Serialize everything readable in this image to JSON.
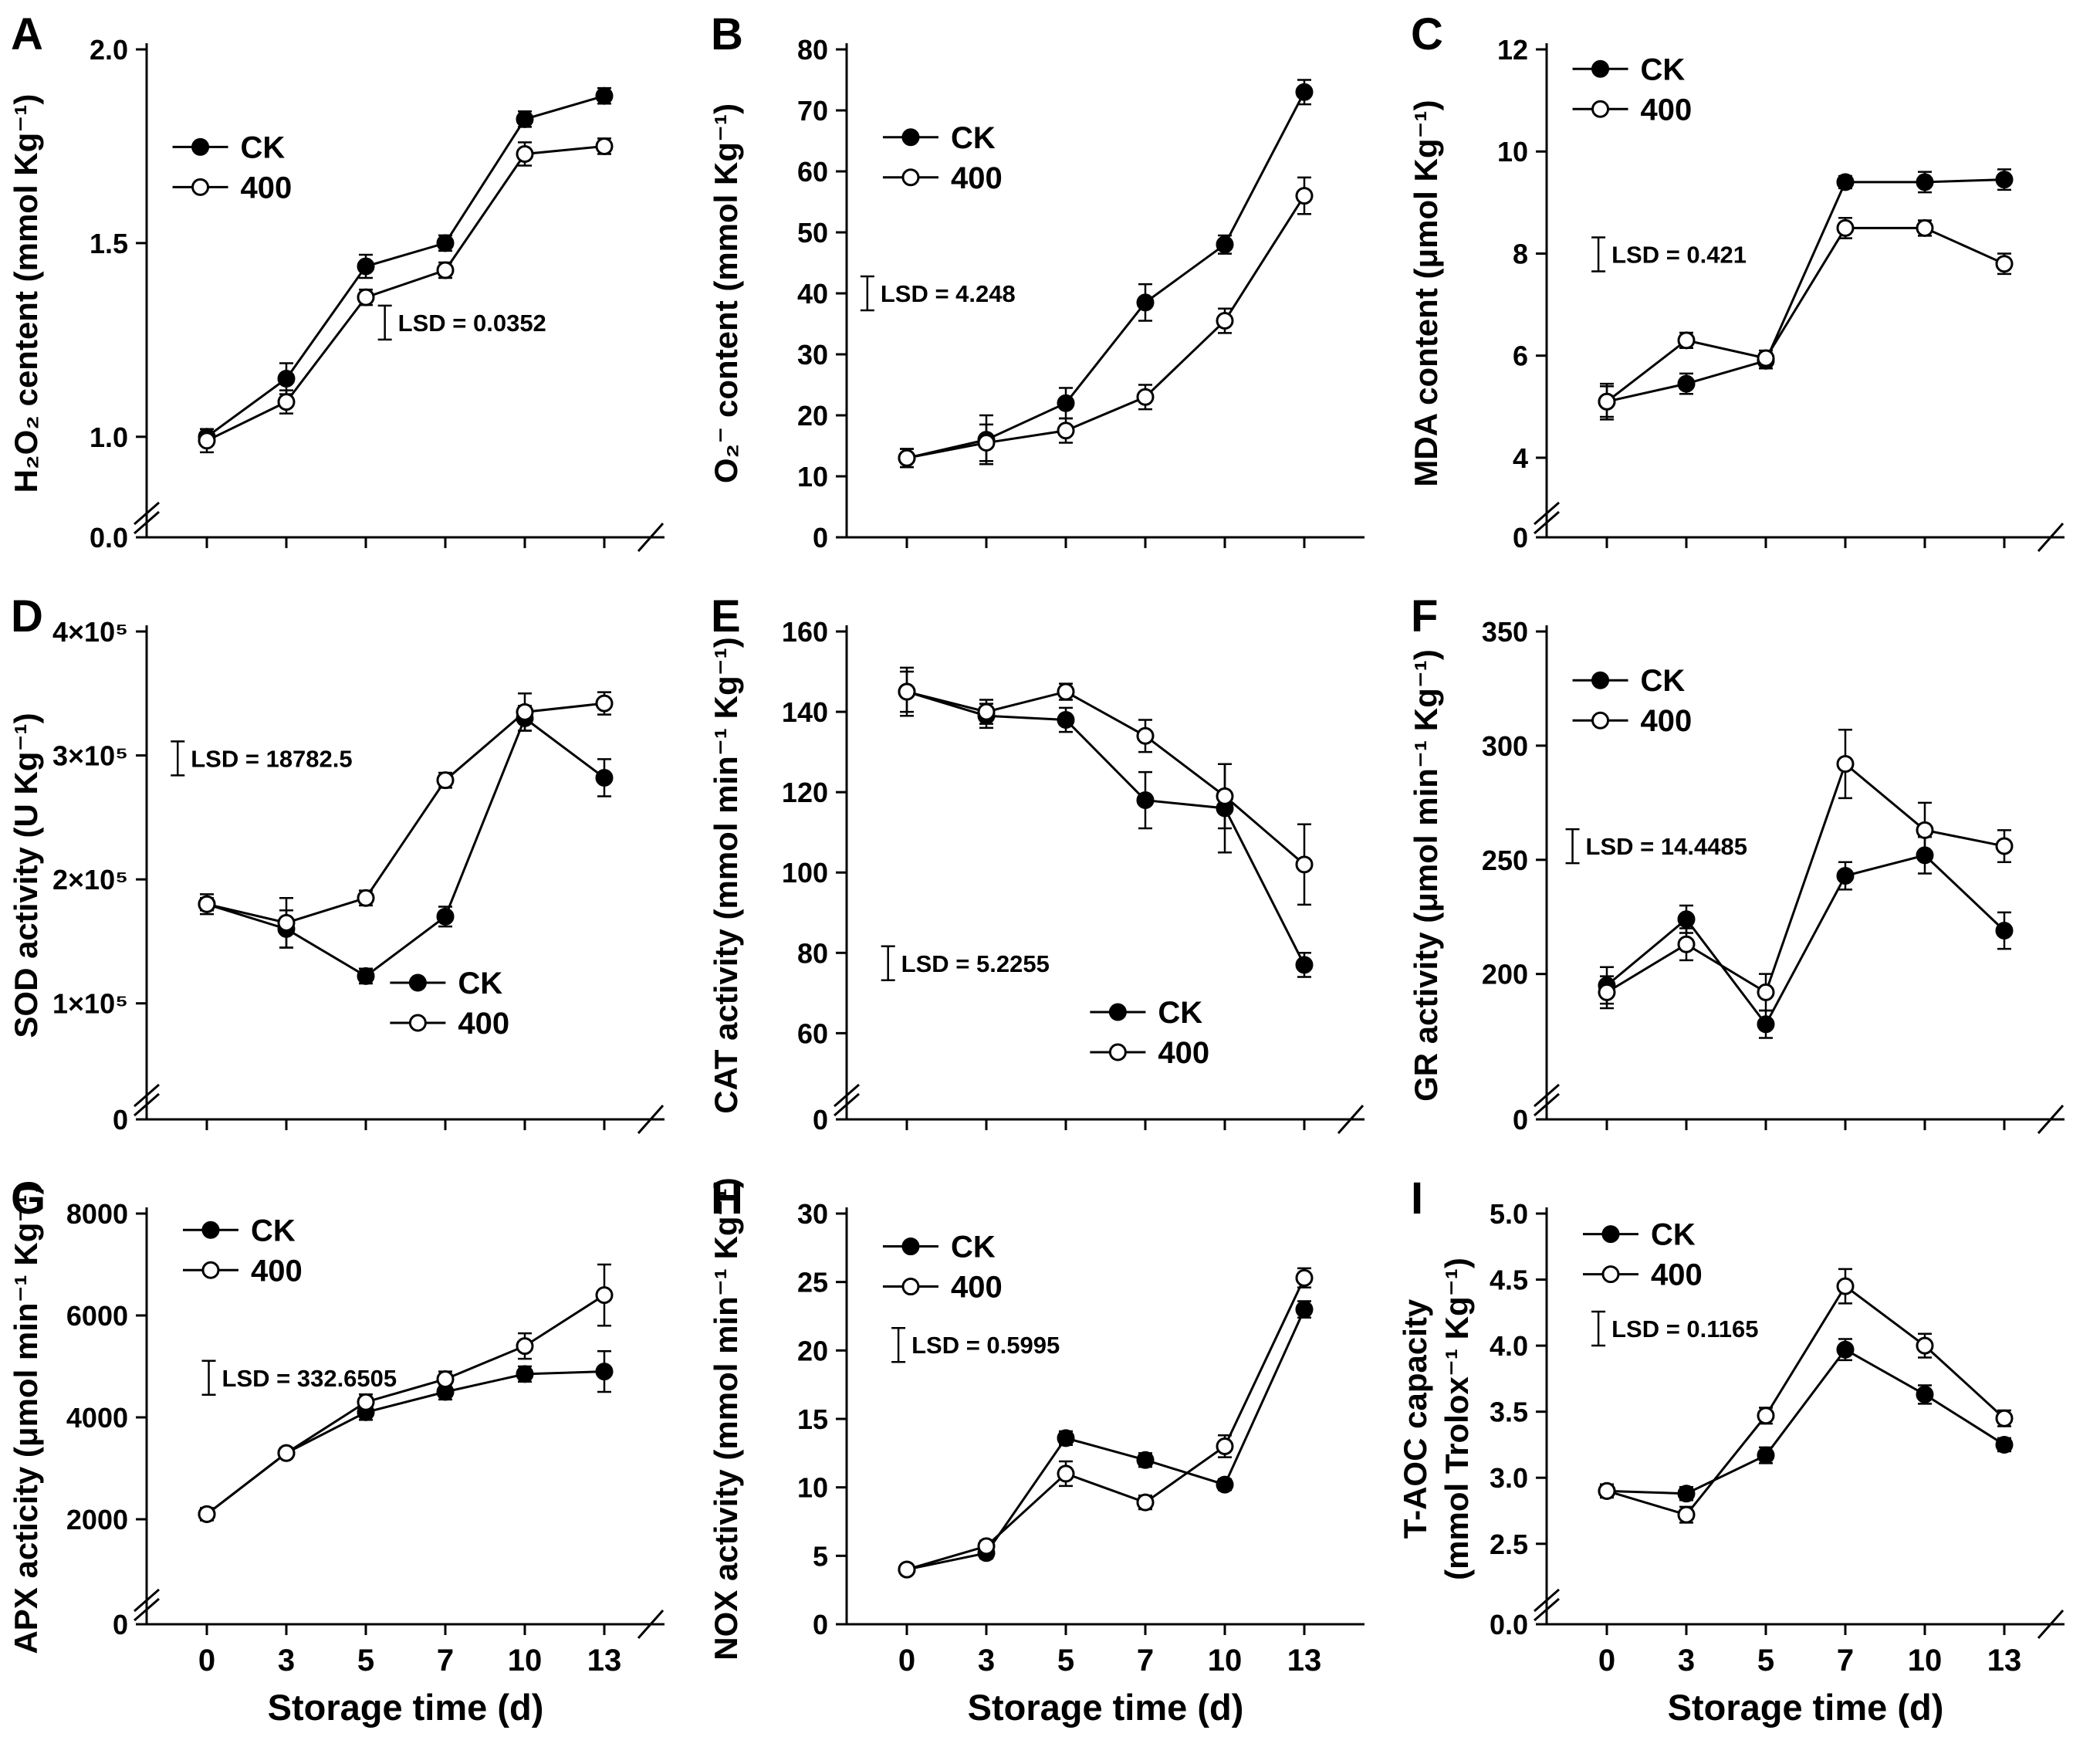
{
  "figure": {
    "xlabel": "Storage time (d)",
    "x_tick_labels": [
      "0",
      "3",
      "5",
      "7",
      "10",
      "13"
    ],
    "colors": {
      "line": "#000000",
      "filled_marker": "#000000",
      "open_marker_fill": "#ffffff"
    },
    "legend_entries": [
      "CK",
      "400"
    ]
  },
  "chart_data": [
    {
      "panel": "A",
      "type": "line",
      "ylabel": "H₂O₂ centent (mmol Kg⁻¹)",
      "ylabel2": null,
      "zero_label": "0.0",
      "lin_min": 0.88,
      "lin_max": 2.0,
      "yticks": [
        1.0,
        1.5,
        2.0
      ],
      "ytick_labels": [
        "1.0",
        "1.5",
        "2.0"
      ],
      "x": [
        0,
        3,
        5,
        7,
        10,
        13
      ],
      "series": [
        {
          "name": "CK",
          "marker": "filled",
          "values": [
            1.0,
            1.15,
            1.44,
            1.5,
            1.82,
            1.88
          ],
          "err": [
            0.02,
            0.04,
            0.03,
            0.02,
            0.02,
            0.02
          ]
        },
        {
          "name": "400",
          "marker": "open",
          "values": [
            0.99,
            1.09,
            1.36,
            1.43,
            1.73,
            1.75
          ],
          "err": [
            0.03,
            0.03,
            0.02,
            0.02,
            0.03,
            0.02
          ]
        }
      ],
      "lsd": {
        "label": "LSD = 0.0352",
        "fx": 0.46,
        "fy": 0.56
      },
      "legend": {
        "fx": 0.05,
        "fy": 0.2
      },
      "x_break": true,
      "show_x_labels": false
    },
    {
      "panel": "B",
      "type": "line",
      "ylabel": "O₂⁻ content (mmol Kg⁻¹)",
      "ylabel2": null,
      "zero_label": null,
      "lin_min": 0,
      "lin_max": 80,
      "yticks": [
        0,
        10,
        20,
        30,
        40,
        50,
        60,
        70,
        80
      ],
      "ytick_labels": [
        "0",
        "10",
        "20",
        "30",
        "40",
        "50",
        "60",
        "70",
        "80"
      ],
      "x": [
        0,
        3,
        5,
        7,
        10,
        13
      ],
      "series": [
        {
          "name": "CK",
          "marker": "filled",
          "values": [
            13,
            16,
            22,
            38.5,
            48,
            73
          ],
          "err": [
            1.5,
            4,
            2.5,
            3,
            1.5,
            2
          ]
        },
        {
          "name": "400",
          "marker": "open",
          "values": [
            13,
            15.5,
            17.5,
            23,
            35.5,
            56
          ],
          "err": [
            1.5,
            3,
            2,
            2,
            2,
            3
          ]
        }
      ],
      "lsd": {
        "label": "LSD = 4.248",
        "fx": 0.04,
        "fy": 0.5
      },
      "legend": {
        "fx": 0.07,
        "fy": 0.18
      },
      "x_break": false,
      "show_x_labels": false
    },
    {
      "panel": "C",
      "type": "line",
      "ylabel": "MDA content (μmol Kg⁻¹)",
      "ylabel2": null,
      "zero_label": "0",
      "lin_min": 3.5,
      "lin_max": 12,
      "yticks": [
        4,
        6,
        8,
        10,
        12
      ],
      "ytick_labels": [
        "4",
        "6",
        "8",
        "10",
        "12"
      ],
      "x": [
        0,
        3,
        5,
        7,
        10,
        13
      ],
      "series": [
        {
          "name": "CK",
          "marker": "filled",
          "values": [
            5.1,
            5.45,
            5.9,
            9.4,
            9.4,
            9.45
          ],
          "err": [
            0.35,
            0.2,
            0.15,
            0.12,
            0.2,
            0.2
          ]
        },
        {
          "name": "400",
          "marker": "open",
          "values": [
            5.1,
            6.3,
            5.95,
            8.5,
            8.5,
            7.8
          ],
          "err": [
            0.3,
            0.15,
            0.15,
            0.2,
            0.15,
            0.2
          ]
        }
      ],
      "lsd": {
        "label": "LSD = 0.421",
        "fx": 0.1,
        "fy": 0.42
      },
      "legend": {
        "fx": 0.05,
        "fy": 0.04
      },
      "x_break": true,
      "show_x_labels": false
    },
    {
      "panel": "D",
      "type": "line",
      "ylabel": "SOD activity (U Kg⁻¹)",
      "ylabel2": null,
      "zero_label": "0",
      "lin_min": 50000,
      "lin_max": 400000,
      "yticks": [
        100000,
        200000,
        300000,
        400000
      ],
      "ytick_labels": [
        "1×10⁵",
        "2×10⁵",
        "3×10⁵",
        "4×10⁵"
      ],
      "x": [
        0,
        3,
        5,
        7,
        10,
        13
      ],
      "series": [
        {
          "name": "CK",
          "marker": "filled",
          "values": [
            180000,
            160000,
            122000,
            170000,
            330000,
            282000
          ],
          "err": [
            8000,
            15000,
            6000,
            8000,
            10000,
            15000
          ]
        },
        {
          "name": "400",
          "marker": "open",
          "values": [
            180000,
            165000,
            185000,
            280000,
            335000,
            342000
          ],
          "err": [
            5000,
            20000,
            6000,
            6000,
            15000,
            9000
          ]
        }
      ],
      "lsd": {
        "label": "LSD = 18782.5",
        "fx": 0.06,
        "fy": 0.26
      },
      "legend": {
        "fx": 0.47,
        "fy": 0.72
      },
      "x_break": true,
      "show_x_labels": false
    },
    {
      "panel": "E",
      "type": "line",
      "ylabel": "CAT activity (mmol min⁻¹ Kg⁻¹)",
      "ylabel2": null,
      "zero_label": "0",
      "lin_min": 52,
      "lin_max": 160,
      "yticks": [
        60,
        80,
        100,
        120,
        140,
        160
      ],
      "ytick_labels": [
        "60",
        "80",
        "100",
        "120",
        "140",
        "160"
      ],
      "x": [
        0,
        3,
        5,
        7,
        10,
        13
      ],
      "series": [
        {
          "name": "CK",
          "marker": "filled",
          "values": [
            145,
            139,
            138,
            118,
            116,
            77
          ],
          "err": [
            6,
            3,
            3,
            7,
            11,
            3
          ]
        },
        {
          "name": "400",
          "marker": "open",
          "values": [
            145,
            140,
            145,
            134,
            119,
            102
          ],
          "err": [
            5,
            3,
            2,
            4,
            8,
            10
          ]
        }
      ],
      "lsd": {
        "label": "LSD = 5.2255",
        "fx": 0.08,
        "fy": 0.68
      },
      "legend": {
        "fx": 0.47,
        "fy": 0.78
      },
      "x_break": true,
      "show_x_labels": false
    },
    {
      "panel": "F",
      "type": "line",
      "ylabel": "GR activity (μmol min⁻¹ Kg⁻¹)",
      "ylabel2": null,
      "zero_label": "0",
      "lin_min": 160,
      "lin_max": 350,
      "yticks": [
        200,
        250,
        300,
        350
      ],
      "ytick_labels": [
        "200",
        "250",
        "300",
        "350"
      ],
      "x": [
        0,
        3,
        5,
        7,
        10,
        13
      ],
      "series": [
        {
          "name": "CK",
          "marker": "filled",
          "values": [
            195,
            224,
            178,
            243,
            252,
            219
          ],
          "err": [
            8,
            6,
            6,
            6,
            8,
            8
          ]
        },
        {
          "name": "400",
          "marker": "open",
          "values": [
            192,
            213,
            192,
            292,
            263,
            256
          ],
          "err": [
            7,
            7,
            8,
            15,
            12,
            7
          ]
        }
      ],
      "lsd": {
        "label": "LSD = 14.4485",
        "fx": 0.05,
        "fy": 0.44
      },
      "legend": {
        "fx": 0.05,
        "fy": 0.1
      },
      "x_break": true,
      "show_x_labels": false
    },
    {
      "panel": "G",
      "type": "line",
      "ylabel": "APX acticity (μmol min⁻¹ Kg⁻¹)",
      "ylabel2": null,
      "zero_label": "0",
      "lin_min": 1000,
      "lin_max": 8000,
      "yticks": [
        2000,
        4000,
        6000,
        8000
      ],
      "ytick_labels": [
        "2000",
        "4000",
        "6000",
        "8000"
      ],
      "x": [
        0,
        3,
        5,
        7,
        10,
        13
      ],
      "series": [
        {
          "name": "CK",
          "marker": "filled",
          "values": [
            2100,
            3300,
            4100,
            4500,
            4850,
            4900
          ],
          "err": [
            120,
            100,
            150,
            150,
            150,
            400
          ]
        },
        {
          "name": "400",
          "marker": "open",
          "values": [
            2100,
            3300,
            4300,
            4750,
            5400,
            6400
          ],
          "err": [
            120,
            100,
            150,
            150,
            250,
            600
          ]
        }
      ],
      "lsd": {
        "label": "LSD = 332.6505",
        "fx": 0.12,
        "fy": 0.4
      },
      "legend": {
        "fx": 0.07,
        "fy": 0.04
      },
      "x_break": true,
      "show_x_labels": true
    },
    {
      "panel": "H",
      "type": "line",
      "ylabel": "NOX activity (mmol min⁻¹ Kg⁻¹)",
      "ylabel2": null,
      "zero_label": null,
      "lin_min": 0,
      "lin_max": 30,
      "yticks": [
        0,
        5,
        10,
        15,
        20,
        25,
        30
      ],
      "ytick_labels": [
        "0",
        "5",
        "10",
        "15",
        "20",
        "25",
        "30"
      ],
      "x": [
        0,
        3,
        5,
        7,
        10,
        13
      ],
      "series": [
        {
          "name": "CK",
          "marker": "filled",
          "values": [
            4,
            5.2,
            13.6,
            12,
            10.2,
            23
          ],
          "err": [
            0.3,
            0.4,
            0.5,
            0.5,
            0.4,
            0.6
          ]
        },
        {
          "name": "400",
          "marker": "open",
          "values": [
            4,
            5.7,
            11,
            8.9,
            13,
            25.3
          ],
          "err": [
            0.3,
            0.4,
            0.9,
            0.5,
            0.8,
            0.7
          ]
        }
      ],
      "lsd": {
        "label": "LSD = 0.5995",
        "fx": 0.1,
        "fy": 0.32
      },
      "legend": {
        "fx": 0.07,
        "fy": 0.08
      },
      "x_break": false,
      "show_x_labels": true
    },
    {
      "panel": "I",
      "type": "line",
      "ylabel": "T-AOC capacity",
      "ylabel2": "(mmol Trolox⁻¹ Kg⁻¹)",
      "zero_label": "0.0",
      "lin_min": 2.3,
      "lin_max": 5.0,
      "yticks": [
        2.5,
        3.0,
        3.5,
        4.0,
        4.5,
        5.0
      ],
      "ytick_labels": [
        "2.5",
        "3.0",
        "3.5",
        "4.0",
        "4.5",
        "5.0"
      ],
      "x": [
        0,
        3,
        5,
        7,
        10,
        13
      ],
      "series": [
        {
          "name": "CK",
          "marker": "filled",
          "values": [
            2.9,
            2.88,
            3.17,
            3.97,
            3.63,
            3.25
          ],
          "err": [
            0.05,
            0.05,
            0.06,
            0.08,
            0.07,
            0.05
          ]
        },
        {
          "name": "400",
          "marker": "open",
          "values": [
            2.9,
            2.72,
            3.47,
            4.45,
            4.0,
            3.45
          ],
          "err": [
            0.05,
            0.06,
            0.06,
            0.13,
            0.09,
            0.06
          ]
        }
      ],
      "lsd": {
        "label": "LSD = 0.1165",
        "fx": 0.1,
        "fy": 0.28
      },
      "legend": {
        "fx": 0.07,
        "fy": 0.05
      },
      "x_break": true,
      "show_x_labels": true
    }
  ]
}
